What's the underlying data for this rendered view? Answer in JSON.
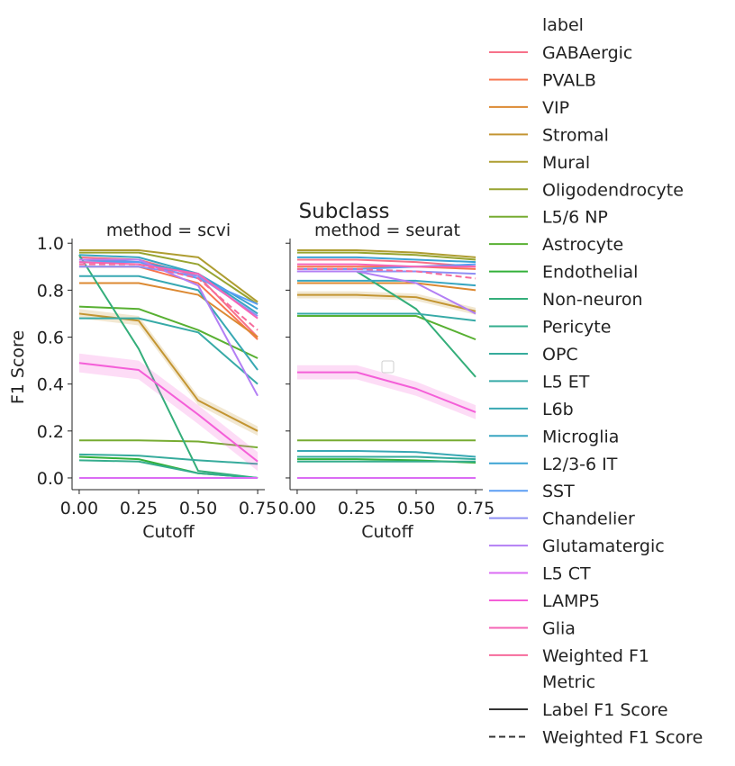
{
  "figure": {
    "suptitle": "Subclass",
    "ylabel": "F1 Score"
  },
  "legend": {
    "label_title": "label",
    "metric_title": "Metric",
    "labels": [
      {
        "name": "GABAergic",
        "color": "#f77189"
      },
      {
        "name": "PVALB",
        "color": "#f7754f"
      },
      {
        "name": "VIP",
        "color": "#dc8932"
      },
      {
        "name": "Stromal",
        "color": "#c39532"
      },
      {
        "name": "Mural",
        "color": "#ae9d31"
      },
      {
        "name": "Oligodendrocyte",
        "color": "#97a431"
      },
      {
        "name": "L5/6 NP",
        "color": "#77ab31"
      },
      {
        "name": "Astrocyte",
        "color": "#58b032"
      },
      {
        "name": "Endothelial",
        "color": "#33b039"
      },
      {
        "name": "Non-neuron",
        "color": "#34ae7a"
      },
      {
        "name": "Pericyte",
        "color": "#35ad8e"
      },
      {
        "name": "OPC",
        "color": "#36ab9c"
      },
      {
        "name": "L5 ET",
        "color": "#37aaa7"
      },
      {
        "name": "L6b",
        "color": "#38a8b3"
      },
      {
        "name": "Microglia",
        "color": "#39a6c1"
      },
      {
        "name": "L2/3-6 IT",
        "color": "#3ba3d4"
      },
      {
        "name": "SST",
        "color": "#5b9df4"
      },
      {
        "name": "Chandelier",
        "color": "#8e8ff4"
      },
      {
        "name": "Glutamatergic",
        "color": "#b37ff4"
      },
      {
        "name": "L5 CT",
        "color": "#db6cf4"
      },
      {
        "name": "LAMP5",
        "color": "#f45fd8"
      },
      {
        "name": "Glia",
        "color": "#f565b6"
      },
      {
        "name": "Weighted F1",
        "color": "#f66b9b"
      }
    ],
    "metrics": [
      {
        "name": "Label F1 Score",
        "style": "solid"
      },
      {
        "name": "Weighted F1 Score",
        "style": "dashed"
      }
    ]
  },
  "chart_data": [
    {
      "type": "line",
      "title": "method = scvi",
      "xlabel": "Cutoff",
      "ylabel": "F1 Score",
      "x": [
        0.0,
        0.25,
        0.5,
        0.75
      ],
      "x_ticks": [
        "0.00",
        "0.25",
        "0.50",
        "0.75"
      ],
      "y_ticks": [
        "0.0",
        "0.2",
        "0.4",
        "0.6",
        "0.8",
        "1.0"
      ],
      "xlim": [
        -0.03,
        0.78
      ],
      "ylim": [
        -0.05,
        1.02
      ],
      "series": [
        {
          "name": "GABAergic",
          "metric": "Label F1 Score",
          "values": [
            0.94,
            0.93,
            0.86,
            0.6
          ]
        },
        {
          "name": "PVALB",
          "metric": "Label F1 Score",
          "values": [
            0.9,
            0.9,
            0.83,
            0.59
          ]
        },
        {
          "name": "VIP",
          "metric": "Label F1 Score",
          "values": [
            0.83,
            0.83,
            0.78,
            0.6
          ]
        },
        {
          "name": "Stromal",
          "metric": "Label F1 Score",
          "values": [
            0.7,
            0.67,
            0.33,
            0.2
          ],
          "band": 0.02
        },
        {
          "name": "Mural",
          "metric": "Label F1 Score",
          "values": [
            0.97,
            0.97,
            0.94,
            0.75
          ]
        },
        {
          "name": "Oligodendrocyte",
          "metric": "Label F1 Score",
          "values": [
            0.96,
            0.96,
            0.91,
            0.74
          ]
        },
        {
          "name": "L5/6 NP",
          "metric": "Label F1 Score",
          "values": [
            0.16,
            0.16,
            0.155,
            0.13
          ]
        },
        {
          "name": "Astrocyte",
          "metric": "Label F1 Score",
          "values": [
            0.73,
            0.72,
            0.63,
            0.51
          ]
        },
        {
          "name": "Endothelial",
          "metric": "Label F1 Score",
          "values": [
            0.09,
            0.08,
            0.02,
            0.0
          ]
        },
        {
          "name": "Non-neuron",
          "metric": "Label F1 Score",
          "values": [
            0.95,
            0.55,
            0.03,
            0.0
          ]
        },
        {
          "name": "Pericyte",
          "metric": "Label F1 Score",
          "values": [
            0.075,
            0.07,
            0.02,
            0.0
          ]
        },
        {
          "name": "OPC",
          "metric": "Label F1 Score",
          "values": [
            0.1,
            0.095,
            0.075,
            0.06
          ]
        },
        {
          "name": "L5 ET",
          "metric": "Label F1 Score",
          "values": [
            0.68,
            0.68,
            0.62,
            0.4
          ]
        },
        {
          "name": "L6b",
          "metric": "Label F1 Score",
          "values": [
            0.86,
            0.86,
            0.8,
            0.46
          ]
        },
        {
          "name": "Microglia",
          "metric": "Label F1 Score",
          "values": [
            0.95,
            0.94,
            0.87,
            0.7
          ]
        },
        {
          "name": "L2/3-6 IT",
          "metric": "Label F1 Score",
          "values": [
            0.93,
            0.92,
            0.87,
            0.72
          ]
        },
        {
          "name": "SST",
          "metric": "Label F1 Score",
          "values": [
            0.92,
            0.92,
            0.85,
            0.74
          ]
        },
        {
          "name": "Chandelier",
          "metric": "Label F1 Score",
          "values": [
            0.9,
            0.9,
            0.86,
            0.69
          ]
        },
        {
          "name": "Glutamatergic",
          "metric": "Label F1 Score",
          "values": [
            0.93,
            0.93,
            0.82,
            0.35
          ]
        },
        {
          "name": "L5 CT",
          "metric": "Label F1 Score",
          "values": [
            0.0,
            0.0,
            0.0,
            0.0
          ]
        },
        {
          "name": "LAMP5",
          "metric": "Label F1 Score",
          "values": [
            0.49,
            0.46,
            0.27,
            0.07
          ],
          "band": 0.04
        },
        {
          "name": "Glia",
          "metric": "Label F1 Score",
          "values": [
            0.92,
            0.91,
            0.87,
            0.68
          ]
        },
        {
          "name": "Weighted F1",
          "metric": "Weighted F1 Score",
          "values": [
            0.91,
            0.91,
            0.85,
            0.63
          ]
        }
      ]
    },
    {
      "type": "line",
      "title": "method = seurat",
      "xlabel": "Cutoff",
      "x": [
        0.0,
        0.25,
        0.5,
        0.75
      ],
      "x_ticks": [
        "0.00",
        "0.25",
        "0.50",
        "0.75"
      ],
      "xlim": [
        -0.03,
        0.78
      ],
      "ylim": [
        -0.05,
        1.02
      ],
      "series": [
        {
          "name": "GABAergic",
          "metric": "Label F1 Score",
          "values": [
            0.93,
            0.93,
            0.92,
            0.9
          ]
        },
        {
          "name": "PVALB",
          "metric": "Label F1 Score",
          "values": [
            0.9,
            0.9,
            0.9,
            0.89
          ]
        },
        {
          "name": "VIP",
          "metric": "Label F1 Score",
          "values": [
            0.83,
            0.83,
            0.83,
            0.8
          ]
        },
        {
          "name": "Stromal",
          "metric": "Label F1 Score",
          "values": [
            0.78,
            0.78,
            0.77,
            0.71
          ],
          "band": 0.015
        },
        {
          "name": "Mural",
          "metric": "Label F1 Score",
          "values": [
            0.97,
            0.97,
            0.96,
            0.94
          ]
        },
        {
          "name": "Oligodendrocyte",
          "metric": "Label F1 Score",
          "values": [
            0.96,
            0.96,
            0.95,
            0.93
          ]
        },
        {
          "name": "L5/6 NP",
          "metric": "Label F1 Score",
          "values": [
            0.16,
            0.16,
            0.16,
            0.16
          ]
        },
        {
          "name": "Astrocyte",
          "metric": "Label F1 Score",
          "values": [
            0.69,
            0.69,
            0.69,
            0.59
          ]
        },
        {
          "name": "Endothelial",
          "metric": "Label F1 Score",
          "values": [
            0.08,
            0.08,
            0.075,
            0.065
          ]
        },
        {
          "name": "Non-neuron",
          "metric": "Label F1 Score",
          "values": [
            0.88,
            0.88,
            0.72,
            0.43
          ]
        },
        {
          "name": "Pericyte",
          "metric": "Label F1 Score",
          "values": [
            0.07,
            0.07,
            0.07,
            0.07
          ]
        },
        {
          "name": "OPC",
          "metric": "Label F1 Score",
          "values": [
            0.09,
            0.09,
            0.09,
            0.08
          ]
        },
        {
          "name": "L5 ET",
          "metric": "Label F1 Score",
          "values": [
            0.7,
            0.7,
            0.7,
            0.67
          ]
        },
        {
          "name": "L6b",
          "metric": "Label F1 Score",
          "values": [
            0.115,
            0.115,
            0.11,
            0.09
          ]
        },
        {
          "name": "Microglia",
          "metric": "Label F1 Score",
          "values": [
            0.84,
            0.84,
            0.84,
            0.82
          ]
        },
        {
          "name": "L2/3-6 IT",
          "metric": "Label F1 Score",
          "values": [
            0.94,
            0.94,
            0.93,
            0.92
          ]
        },
        {
          "name": "SST",
          "metric": "Label F1 Score",
          "values": [
            0.89,
            0.89,
            0.9,
            0.91
          ]
        },
        {
          "name": "Chandelier",
          "metric": "Label F1 Score",
          "values": [
            0.88,
            0.88,
            0.88,
            0.87
          ]
        },
        {
          "name": "Glutamatergic",
          "metric": "Label F1 Score",
          "values": [
            0.88,
            0.88,
            0.83,
            0.7
          ]
        },
        {
          "name": "L5 CT",
          "metric": "Label F1 Score",
          "values": [
            0.0,
            0.0,
            0.0,
            0.0
          ]
        },
        {
          "name": "LAMP5",
          "metric": "Label F1 Score",
          "values": [
            0.45,
            0.45,
            0.38,
            0.28
          ],
          "band": 0.03
        },
        {
          "name": "Glia",
          "metric": "Label F1 Score",
          "values": [
            0.91,
            0.91,
            0.9,
            0.9
          ]
        },
        {
          "name": "Weighted F1",
          "metric": "Weighted F1 Score",
          "values": [
            0.89,
            0.89,
            0.88,
            0.85
          ]
        }
      ]
    }
  ]
}
